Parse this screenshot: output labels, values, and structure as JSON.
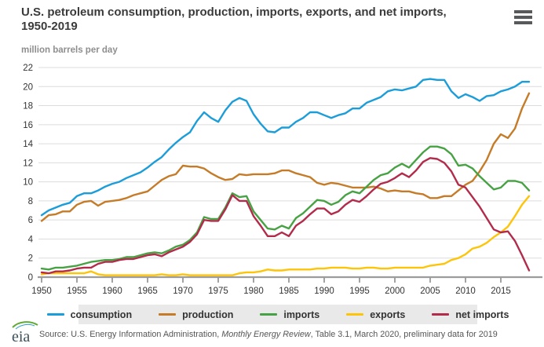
{
  "header": {
    "title_line1": "U.S. petroleum consumption, production, imports, exports, and net imports,",
    "title_line2": "1950-2019"
  },
  "chart": {
    "unit_label": "million barrels per day"
  },
  "chart_data": {
    "type": "line",
    "title": "U.S. petroleum consumption, production, imports, exports, and net imports, 1950-2019",
    "xlabel": "",
    "ylabel": "million barrels per day",
    "ylim": [
      0,
      22
    ],
    "yticks": [
      0,
      2,
      4,
      6,
      8,
      10,
      12,
      14,
      16,
      18,
      20,
      22
    ],
    "xticks": [
      1950,
      1955,
      1960,
      1965,
      1970,
      1975,
      1980,
      1985,
      1990,
      1995,
      2000,
      2005,
      2010,
      2015
    ],
    "grid": "horizontal",
    "legend_position": "bottom",
    "x": [
      1950,
      1951,
      1952,
      1953,
      1954,
      1955,
      1956,
      1957,
      1958,
      1959,
      1960,
      1961,
      1962,
      1963,
      1964,
      1965,
      1966,
      1967,
      1968,
      1969,
      1970,
      1971,
      1972,
      1973,
      1974,
      1975,
      1976,
      1977,
      1978,
      1979,
      1980,
      1981,
      1982,
      1983,
      1984,
      1985,
      1986,
      1987,
      1988,
      1989,
      1990,
      1991,
      1992,
      1993,
      1994,
      1995,
      1996,
      1997,
      1998,
      1999,
      2000,
      2001,
      2002,
      2003,
      2004,
      2005,
      2006,
      2007,
      2008,
      2009,
      2010,
      2011,
      2012,
      2013,
      2014,
      2015,
      2016,
      2017,
      2018,
      2019
    ],
    "series": [
      {
        "id": "consumption",
        "name": "consumption",
        "color": "#1b9dd9",
        "values": [
          6.5,
          7.0,
          7.3,
          7.6,
          7.8,
          8.5,
          8.8,
          8.8,
          9.1,
          9.5,
          9.8,
          10.0,
          10.4,
          10.7,
          11.0,
          11.5,
          12.1,
          12.6,
          13.4,
          14.1,
          14.7,
          15.2,
          16.4,
          17.3,
          16.7,
          16.3,
          17.5,
          18.4,
          18.8,
          18.5,
          17.1,
          16.1,
          15.3,
          15.2,
          15.7,
          15.7,
          16.3,
          16.7,
          17.3,
          17.3,
          17.0,
          16.7,
          17.0,
          17.2,
          17.7,
          17.7,
          18.3,
          18.6,
          18.9,
          19.5,
          19.7,
          19.6,
          19.8,
          20.0,
          20.7,
          20.8,
          20.7,
          20.7,
          19.5,
          18.8,
          19.2,
          18.9,
          18.5,
          19.0,
          19.1,
          19.5,
          19.7,
          20.0,
          20.5,
          20.5
        ]
      },
      {
        "id": "production",
        "name": "production",
        "color": "#c57b27",
        "values": [
          5.9,
          6.5,
          6.6,
          6.9,
          6.9,
          7.6,
          7.9,
          8.0,
          7.5,
          7.9,
          8.0,
          8.1,
          8.3,
          8.6,
          8.8,
          9.0,
          9.6,
          10.2,
          10.6,
          10.8,
          11.7,
          11.6,
          11.6,
          11.4,
          10.9,
          10.5,
          10.2,
          10.3,
          10.8,
          10.7,
          10.8,
          10.8,
          10.8,
          10.9,
          11.2,
          11.2,
          10.9,
          10.7,
          10.5,
          9.9,
          9.7,
          9.9,
          9.8,
          9.6,
          9.4,
          9.4,
          9.4,
          9.5,
          9.3,
          9.0,
          9.1,
          9.0,
          9.0,
          8.8,
          8.7,
          8.3,
          8.3,
          8.5,
          8.5,
          9.1,
          9.7,
          10.1,
          11.1,
          12.3,
          14.0,
          15.0,
          14.6,
          15.6,
          17.7,
          19.3
        ]
      },
      {
        "id": "imports",
        "name": "imports",
        "color": "#47a244",
        "values": [
          0.9,
          0.8,
          1.0,
          1.0,
          1.1,
          1.2,
          1.4,
          1.6,
          1.7,
          1.8,
          1.8,
          1.9,
          2.1,
          2.1,
          2.3,
          2.5,
          2.6,
          2.5,
          2.8,
          3.2,
          3.4,
          3.9,
          4.7,
          6.3,
          6.1,
          6.1,
          7.3,
          8.8,
          8.4,
          8.5,
          6.9,
          6.0,
          5.1,
          5.0,
          5.4,
          5.1,
          6.2,
          6.7,
          7.4,
          8.1,
          8.0,
          7.6,
          7.9,
          8.6,
          9.0,
          8.8,
          9.5,
          10.2,
          10.7,
          10.9,
          11.5,
          11.9,
          11.5,
          12.3,
          13.1,
          13.7,
          13.7,
          13.5,
          12.9,
          11.7,
          11.8,
          11.4,
          10.6,
          9.9,
          9.2,
          9.4,
          10.1,
          10.1,
          9.9,
          9.1
        ]
      },
      {
        "id": "exports",
        "name": "exports",
        "color": "#fdc408",
        "values": [
          0.3,
          0.4,
          0.4,
          0.4,
          0.4,
          0.4,
          0.4,
          0.6,
          0.3,
          0.2,
          0.2,
          0.2,
          0.2,
          0.2,
          0.2,
          0.2,
          0.2,
          0.3,
          0.2,
          0.2,
          0.3,
          0.2,
          0.2,
          0.2,
          0.2,
          0.2,
          0.2,
          0.2,
          0.4,
          0.5,
          0.5,
          0.6,
          0.8,
          0.7,
          0.7,
          0.8,
          0.8,
          0.8,
          0.8,
          0.9,
          0.9,
          1.0,
          1.0,
          1.0,
          0.9,
          0.9,
          1.0,
          1.0,
          0.9,
          0.9,
          1.0,
          1.0,
          1.0,
          1.0,
          1.0,
          1.2,
          1.3,
          1.4,
          1.8,
          2.0,
          2.4,
          3.0,
          3.2,
          3.6,
          4.2,
          4.7,
          5.3,
          6.4,
          7.6,
          8.5
        ]
      },
      {
        "id": "net-imports",
        "name": "net imports",
        "color": "#b32b4b",
        "values": [
          0.5,
          0.4,
          0.6,
          0.6,
          0.7,
          0.9,
          1.0,
          1.0,
          1.4,
          1.6,
          1.6,
          1.8,
          1.9,
          1.9,
          2.1,
          2.3,
          2.4,
          2.2,
          2.6,
          2.9,
          3.2,
          3.7,
          4.5,
          6.0,
          5.9,
          5.9,
          7.1,
          8.6,
          8.0,
          8.0,
          6.4,
          5.4,
          4.3,
          4.3,
          4.7,
          4.3,
          5.4,
          5.9,
          6.6,
          7.2,
          7.2,
          6.6,
          6.9,
          7.6,
          8.1,
          7.9,
          8.5,
          9.2,
          9.8,
          10.0,
          10.4,
          10.9,
          10.5,
          11.2,
          12.1,
          12.5,
          12.4,
          12.0,
          11.1,
          9.7,
          9.4,
          8.4,
          7.4,
          6.2,
          5.0,
          4.7,
          4.8,
          3.8,
          2.3,
          0.7
        ]
      }
    ]
  },
  "footer": {
    "logo_text": "eia",
    "source_prefix": "Source: U.S. Energy Information Administration, ",
    "source_italic": "Monthly Energy Review",
    "source_suffix": ", Table 3.1, March 2020, preliminary data for 2019"
  }
}
